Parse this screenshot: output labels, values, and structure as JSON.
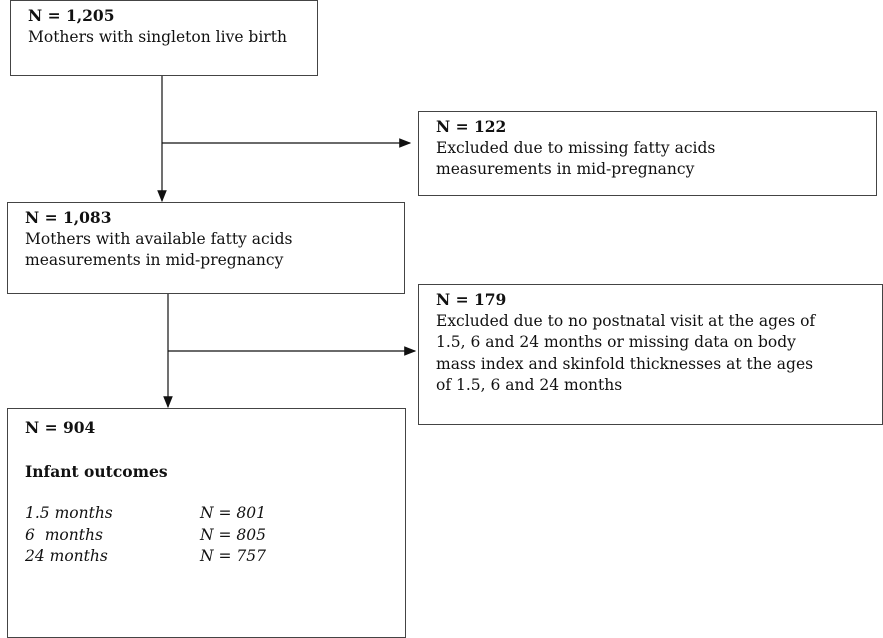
{
  "nodes": [
    {
      "title": "N = 1,205",
      "lines": [
        "Mothers with singleton live birth"
      ]
    },
    {
      "title": "N = 122",
      "lines": [
        "Excluded due to missing fatty acids",
        "measurements in mid-pregnancy"
      ]
    },
    {
      "title": "N = 1,083",
      "lines": [
        "Mothers with available fatty acids",
        "measurements in mid-pregnancy"
      ]
    },
    {
      "title": "N = 179",
      "lines": [
        "Excluded due to no postnatal visit at the ages of",
        "1.5, 6 and 24 months or missing data on body",
        "mass index and skinfold thicknesses at the ages",
        "of 1.5, 6 and 24 months"
      ]
    },
    {
      "title": "N = 904",
      "subtitle": "Infant outcomes",
      "rows": [
        [
          "1.5 months",
          "N = 801"
        ],
        [
          "6  months",
          "N = 805"
        ],
        [
          "24 months",
          "N = 757"
        ]
      ]
    }
  ]
}
